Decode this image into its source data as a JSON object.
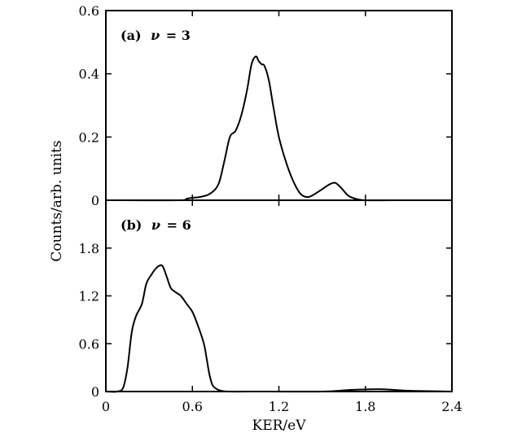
{
  "chart_data": {
    "type": "line",
    "xlabel": "KER/eV",
    "ylabel": "Counts/arb. units",
    "x_ticks": [
      "0",
      "0.6",
      "1.2",
      "1.8",
      "2.4"
    ],
    "xlim": [
      0,
      2.4
    ],
    "panels": [
      {
        "label_prefix": "(a)",
        "label_symbol": "ν",
        "label_value": "= 3",
        "ylim": [
          0,
          0.6
        ],
        "y_ticks": [
          "0",
          "0.2",
          "0.4",
          "0.6"
        ],
        "series": [
          {
            "x": [
              0,
              0.5,
              0.56,
              0.6,
              0.65,
              0.72,
              0.78,
              0.82,
              0.86,
              0.9,
              0.94,
              0.98,
              1.01,
              1.04,
              1.06,
              1.08,
              1.1,
              1.13,
              1.16,
              1.2,
              1.25,
              1.3,
              1.35,
              1.4,
              1.45,
              1.5,
              1.55,
              1.59,
              1.63,
              1.68,
              1.73,
              1.8,
              2.0,
              2.4
            ],
            "y": [
              0,
              0,
              0.005,
              0.008,
              0.01,
              0.02,
              0.05,
              0.12,
              0.2,
              0.22,
              0.27,
              0.35,
              0.43,
              0.455,
              0.44,
              0.43,
              0.425,
              0.38,
              0.3,
              0.2,
              0.12,
              0.06,
              0.02,
              0.01,
              0.02,
              0.035,
              0.05,
              0.055,
              0.04,
              0.015,
              0.005,
              0.0,
              0,
              0
            ]
          }
        ]
      },
      {
        "label_prefix": "(b)",
        "label_symbol": "ν",
        "label_value": "= 6",
        "ylim": [
          0,
          2.4
        ],
        "y_ticks": [
          "0",
          "0.6",
          "1.2",
          "1.8"
        ],
        "series": [
          {
            "x": [
              0,
              0.08,
              0.12,
              0.15,
              0.18,
              0.21,
              0.25,
              0.28,
              0.31,
              0.35,
              0.39,
              0.42,
              0.45,
              0.48,
              0.52,
              0.56,
              0.6,
              0.64,
              0.68,
              0.7,
              0.72,
              0.74,
              0.77,
              0.8,
              0.85,
              1.0,
              1.5,
              1.7,
              1.9,
              2.1,
              2.4
            ],
            "y": [
              0,
              0,
              0.05,
              0.3,
              0.75,
              0.95,
              1.1,
              1.35,
              1.45,
              1.55,
              1.58,
              1.45,
              1.3,
              1.25,
              1.2,
              1.1,
              1.0,
              0.82,
              0.6,
              0.4,
              0.2,
              0.08,
              0.03,
              0.01,
              0.0,
              0,
              0.0,
              0.02,
              0.03,
              0.01,
              0
            ]
          }
        ]
      }
    ]
  }
}
